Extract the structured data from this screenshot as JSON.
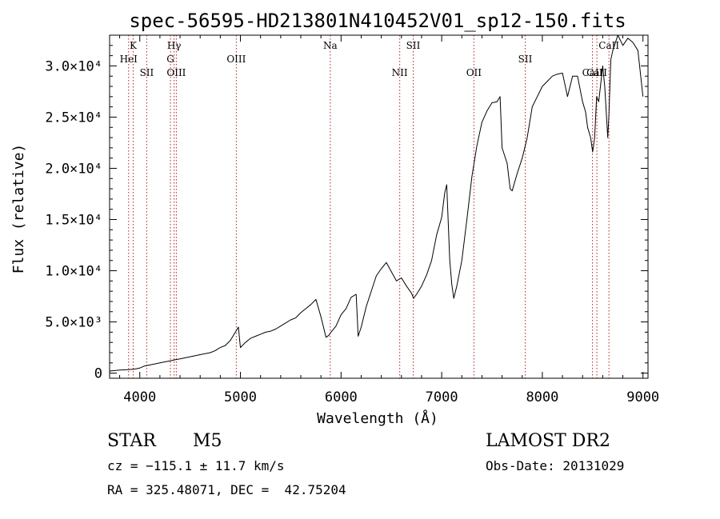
{
  "chart_data": {
    "type": "line",
    "title": "spec-56595-HD213801N410452V01_sp12-150.fits",
    "xlabel": "Wavelength (Å)",
    "ylabel": "Flux (relative)",
    "xlim": [
      3700,
      9050
    ],
    "ylim": [
      -500,
      33000
    ],
    "x_ticks": [
      4000,
      5000,
      6000,
      7000,
      8000,
      9000
    ],
    "x_tick_labels": [
      "4000",
      "5000",
      "6000",
      "7000",
      "8000",
      "9000"
    ],
    "y_ticks": [
      0,
      5000,
      10000,
      15000,
      20000,
      25000,
      30000
    ],
    "y_tick_labels": [
      "0",
      "5.0×10³",
      "1.0×10⁴",
      "1.5×10⁴",
      "2.0×10⁴",
      "2.5×10⁴",
      "3.0×10⁴"
    ],
    "grid": false,
    "line_color": "#000000",
    "marker_color": "#b22222",
    "series": [
      {
        "x": [
          3700,
          3800,
          3900,
          3950,
          4000,
          4050,
          4100,
          4200,
          4300,
          4350,
          4400,
          4500,
          4600,
          4700,
          4750,
          4780,
          4800,
          4850,
          4900,
          4950,
          4980,
          5000,
          5050,
          5100,
          5150,
          5200,
          5250,
          5300,
          5350,
          5400,
          5450,
          5500,
          5550,
          5600,
          5650,
          5700,
          5750,
          5800,
          5850,
          5880,
          5900,
          5950,
          6000,
          6050,
          6100,
          6150,
          6170,
          6200,
          6250,
          6300,
          6350,
          6400,
          6450,
          6500,
          6550,
          6600,
          6650,
          6700,
          6720,
          6750,
          6800,
          6850,
          6900,
          6950,
          7000,
          7030,
          7050,
          7080,
          7100,
          7120,
          7150,
          7200,
          7250,
          7300,
          7350,
          7400,
          7450,
          7500,
          7550,
          7580,
          7600,
          7650,
          7680,
          7700,
          7750,
          7800,
          7850,
          7900,
          7950,
          8000,
          8050,
          8100,
          8150,
          8200,
          8250,
          8300,
          8350,
          8400,
          8430,
          8450,
          8480,
          8500,
          8520,
          8540,
          8560,
          8600,
          8620,
          8650,
          8662,
          8680,
          8700,
          8750,
          8800,
          8850,
          8900,
          8950,
          9000
        ],
        "values": [
          200,
          300,
          350,
          400,
          500,
          700,
          800,
          1000,
          1200,
          1300,
          1400,
          1600,
          1800,
          2000,
          2200,
          2400,
          2500,
          2700,
          3200,
          4000,
          4500,
          2500,
          3000,
          3400,
          3600,
          3800,
          4000,
          4100,
          4300,
          4600,
          4900,
          5200,
          5400,
          5900,
          6300,
          6700,
          7200,
          5500,
          3500,
          3700,
          4000,
          4600,
          5700,
          6300,
          7400,
          7700,
          3600,
          4500,
          6500,
          8000,
          9500,
          10200,
          10800,
          9900,
          9000,
          9300,
          8500,
          7800,
          7300,
          7700,
          8500,
          9600,
          11000,
          13500,
          15200,
          17600,
          18400,
          11000,
          8700,
          7300,
          8500,
          11000,
          15000,
          19200,
          22200,
          24500,
          25600,
          26400,
          26500,
          27000,
          22000,
          20500,
          18000,
          17800,
          19500,
          21000,
          23000,
          26000,
          27000,
          28000,
          28500,
          29000,
          29200,
          29300,
          27000,
          29000,
          29000,
          26500,
          25500,
          24000,
          23000,
          21600,
          23000,
          27000,
          26500,
          30000,
          28000,
          23000,
          25300,
          30600,
          31500,
          33000,
          32000,
          32700,
          32300,
          31500,
          27000
        ]
      }
    ],
    "spectral_lines": [
      {
        "label": "K",
        "x": 3934,
        "row": 0
      },
      {
        "label": "HeI",
        "x": 3889,
        "row": 1
      },
      {
        "label": "SII",
        "x": 4069,
        "row": 2
      },
      {
        "label": "Hγ",
        "x": 4341,
        "row": 0
      },
      {
        "label": "G",
        "x": 4305,
        "row": 1
      },
      {
        "label": "OIII",
        "x": 4363,
        "row": 2
      },
      {
        "label": "OIII",
        "x": 4959,
        "row": 1
      },
      {
        "label": "Na",
        "x": 5893,
        "row": 0
      },
      {
        "label": "NII",
        "x": 6583,
        "row": 3
      },
      {
        "label": "SII",
        "x": 6717,
        "row": 0
      },
      {
        "label": "OII",
        "x": 7320,
        "row": 3
      },
      {
        "label": "SII",
        "x": 7830,
        "row": 1
      },
      {
        "label": "CaII",
        "x": 8498,
        "row": 3
      },
      {
        "label": "CaII",
        "x": 8542,
        "row": 2
      },
      {
        "label": "CaII",
        "x": 8662,
        "row": 0
      }
    ]
  },
  "info": {
    "object_class": "STAR",
    "subclass": "M5",
    "survey": "LAMOST DR2",
    "cz": "cz = −115.1 ± 11.7 km/s",
    "obs_date": "Obs-Date: 20131029",
    "coords": "RA = 325.48071, DEC =  42.75204"
  }
}
